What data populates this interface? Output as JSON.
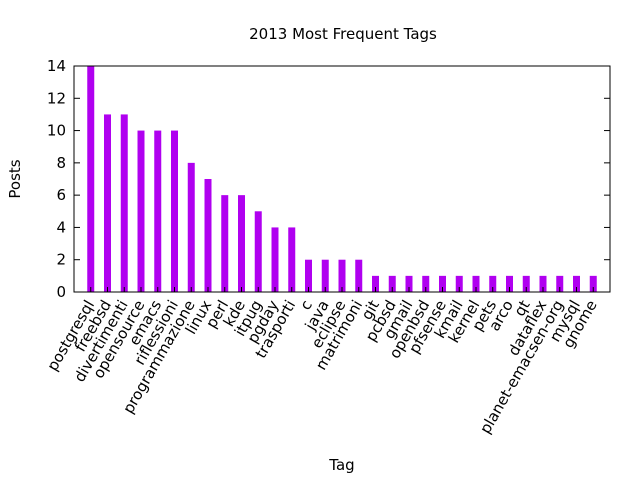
{
  "chart_data": {
    "type": "bar",
    "title": "2013 Most Frequent Tags",
    "xlabel": "Tag",
    "ylabel": "Posts",
    "ylim": [
      0,
      14
    ],
    "yticks": [
      0,
      2,
      4,
      6,
      8,
      10,
      12,
      14
    ],
    "bar_color": "#b000f0",
    "grid": false,
    "legend": "none",
    "categories": [
      "postgresql",
      "freebsd",
      "divertimenti",
      "opensource",
      "emacs",
      "riflessioni",
      "programmazione",
      "linux",
      "perl",
      "kde",
      "itpug",
      "pgday",
      "trasporti",
      "c",
      "java",
      "eclipse",
      "matrimoni",
      "git",
      "pcbsd",
      "gmail",
      "openbsd",
      "pfsense",
      "kmail",
      "kernel",
      "pets",
      "arco",
      "qt",
      "dataflex",
      "planet-emacsen-org",
      "mysql",
      "gnome"
    ],
    "values": [
      14,
      11,
      11,
      10,
      10,
      10,
      8,
      7,
      6,
      6,
      5,
      4,
      4,
      2,
      2,
      2,
      2,
      1,
      1,
      1,
      1,
      1,
      1,
      1,
      1,
      1,
      1,
      1,
      1,
      1,
      1
    ]
  }
}
